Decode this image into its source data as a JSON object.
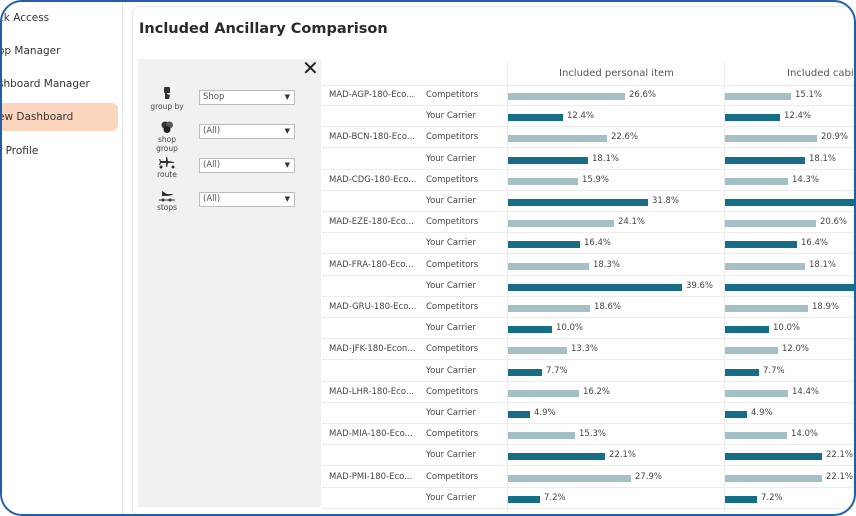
{
  "sidebar": {
    "items": [
      {
        "label": "ck Access",
        "active": false
      },
      {
        "label": "op Manager",
        "active": false
      },
      {
        "label": "shboard Manager",
        "active": false
      },
      {
        "label": "ew Dashboard",
        "active": true
      },
      {
        "label": "r Profile",
        "active": false
      }
    ]
  },
  "page": {
    "title": "Included Ancillary Comparison"
  },
  "filters": [
    {
      "icon": "group-by-icon",
      "label": "group by",
      "value": "Shop"
    },
    {
      "icon": "shop-group-icon",
      "label": "shop group",
      "value": "(All)"
    },
    {
      "icon": "route-icon",
      "label": "route",
      "value": "(All)"
    },
    {
      "icon": "stops-icon",
      "label": "stops",
      "value": "(All)"
    }
  ],
  "table": {
    "columns": [
      "Included personal item",
      "Included cabi"
    ],
    "row_types": [
      "Competitors",
      "Your Carrier"
    ],
    "colors": {
      "competitors": "#a4bfc6",
      "carrier": "#166d86"
    },
    "shops": [
      {
        "name": "MAD-AGP-180-Eco...",
        "personal": {
          "Competitors": "26.6%",
          "Your Carrier": "12.4%"
        },
        "cabin": {
          "Competitors": "15.1%",
          "Your Carrier": "12.4%"
        }
      },
      {
        "name": "MAD-BCN-180-Eco...",
        "personal": {
          "Competitors": "22.6%",
          "Your Carrier": "18.1%"
        },
        "cabin": {
          "Competitors": "20.9%",
          "Your Carrier": "18.1%"
        }
      },
      {
        "name": "MAD-CDG-180-Eco...",
        "personal": {
          "Competitors": "15.9%",
          "Your Carrier": "31.8%"
        },
        "cabin": {
          "Competitors": "14.3%",
          "Your Carrier": ""
        }
      },
      {
        "name": "MAD-EZE-180-Eco...",
        "personal": {
          "Competitors": "24.1%",
          "Your Carrier": "16.4%"
        },
        "cabin": {
          "Competitors": "20.6%",
          "Your Carrier": "16.4%"
        }
      },
      {
        "name": "MAD-FRA-180-Eco...",
        "personal": {
          "Competitors": "18.3%",
          "Your Carrier": "39.6%"
        },
        "cabin": {
          "Competitors": "18.1%",
          "Your Carrier": ""
        }
      },
      {
        "name": "MAD-GRU-180-Eco...",
        "personal": {
          "Competitors": "18.6%",
          "Your Carrier": "10.0%"
        },
        "cabin": {
          "Competitors": "18.9%",
          "Your Carrier": "10.0%"
        }
      },
      {
        "name": "MAD-JFK-180-Econ...",
        "personal": {
          "Competitors": "13.3%",
          "Your Carrier": "7.7%"
        },
        "cabin": {
          "Competitors": "12.0%",
          "Your Carrier": "7.7%"
        }
      },
      {
        "name": "MAD-LHR-180-Eco...",
        "personal": {
          "Competitors": "16.2%",
          "Your Carrier": "4.9%"
        },
        "cabin": {
          "Competitors": "14.4%",
          "Your Carrier": "4.9%"
        }
      },
      {
        "name": "MAD-MIA-180-Eco...",
        "personal": {
          "Competitors": "15.3%",
          "Your Carrier": "22.1%"
        },
        "cabin": {
          "Competitors": "14.0%",
          "Your Carrier": "22.1%"
        }
      },
      {
        "name": "MAD-PMI-180-Eco...",
        "personal": {
          "Competitors": "27.9%",
          "Your Carrier": "7.2%"
        },
        "cabin": {
          "Competitors": "22.1%",
          "Your Carrier": "7.2%"
        }
      }
    ]
  }
}
